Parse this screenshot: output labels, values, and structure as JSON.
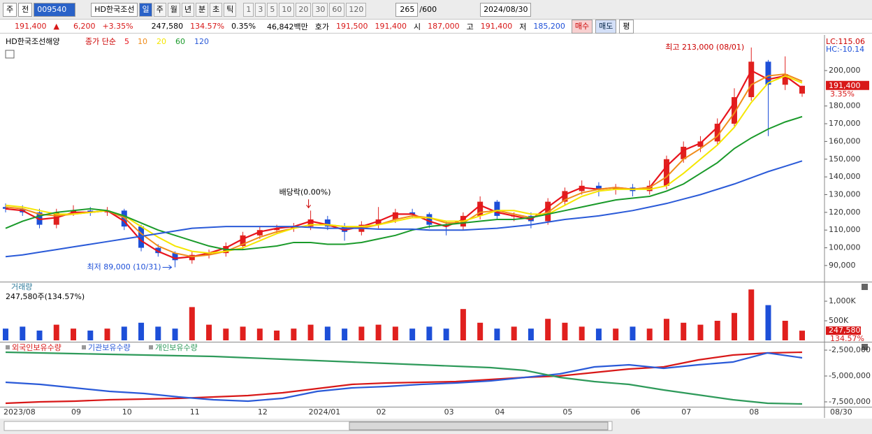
{
  "toolbar": {
    "market": "주",
    "prev": "전",
    "code": "009540",
    "name": "HD한국조선",
    "periods": [
      "일",
      "주",
      "월",
      "년",
      "분",
      "초",
      "틱"
    ],
    "intervals": [
      "1",
      "3",
      "5",
      "10",
      "20",
      "30",
      "60",
      "120"
    ],
    "count": "265",
    "max_count": "/600",
    "date": "2024/08/30"
  },
  "quote": {
    "price": "191,400",
    "arrow": "▲",
    "change": "6,200",
    "change_pct": "+3.35%",
    "volume": "247,580",
    "volume_pct": "134.57%",
    "turnover": "0.35%",
    "amount": "46,842백만",
    "bid_ask_label": "호가",
    "ask": "191,500",
    "bid": "191,400",
    "open_label": "시",
    "open": "187,000",
    "high_label": "고",
    "high": "191,400",
    "low_label": "저",
    "low": "185,200",
    "buy": "매수",
    "sell": "매도",
    "avg": "평"
  },
  "chart_data": [
    {
      "type": "candlestick",
      "title": "HD한국조선해양",
      "subtitle": "종가 단순",
      "lc": "LC:115.06",
      "hc": "HC:-10.14",
      "price_label": "191,400",
      "pct_label": "3.35%",
      "annotations": {
        "max": "최고 213,000 (08/01)",
        "min": "최저 89,000 (10/31)",
        "dividend": "배당락(0.00%)"
      },
      "last_date": "08/30",
      "up_color": "#e0201e",
      "down_color": "#1d4fd8",
      "categories": [
        "2023/08",
        null,
        null,
        null,
        "09",
        null,
        null,
        "10",
        null,
        null,
        null,
        "11",
        null,
        null,
        null,
        "12",
        null,
        null,
        "2024/01",
        null,
        null,
        null,
        "02",
        null,
        null,
        null,
        "03",
        null,
        null,
        "04",
        null,
        null,
        null,
        "05",
        null,
        null,
        null,
        "06",
        null,
        null,
        "07",
        null,
        null,
        null,
        "08",
        null,
        null,
        null
      ],
      "open": [
        123000,
        122000,
        120000,
        113000,
        120000,
        121000,
        120000,
        121000,
        112000,
        100000,
        97000,
        93000,
        96000,
        97000,
        101000,
        107000,
        110000,
        111000,
        112000,
        116000,
        112000,
        109000,
        113000,
        116000,
        120000,
        119000,
        113000,
        112000,
        118000,
        126000,
        118000,
        118000,
        115000,
        126000,
        132000,
        135000,
        133000,
        134000,
        132000,
        135000,
        150000,
        157000,
        160000,
        170000,
        185000,
        205000,
        192000,
        187000
      ],
      "high": [
        125000,
        124000,
        122000,
        122000,
        124000,
        123000,
        123000,
        122000,
        113000,
        102000,
        98000,
        98000,
        99000,
        103000,
        109000,
        112000,
        113000,
        114000,
        121000,
        118000,
        114000,
        115000,
        123000,
        122000,
        122000,
        120000,
        115000,
        120000,
        129000,
        127000,
        120000,
        120000,
        128000,
        134000,
        138000,
        137000,
        136000,
        136000,
        138000,
        152000,
        160000,
        163000,
        173000,
        190000,
        213000,
        206000,
        208000,
        191400
      ],
      "low": [
        120000,
        118000,
        111000,
        111000,
        118000,
        118000,
        118000,
        110000,
        98000,
        95000,
        89000,
        91000,
        94000,
        95000,
        99000,
        105000,
        108000,
        109000,
        110000,
        110000,
        104000,
        107000,
        111000,
        114000,
        117000,
        111000,
        107000,
        110000,
        116000,
        116000,
        115000,
        111000,
        113000,
        124000,
        130000,
        129000,
        130000,
        129000,
        130000,
        133000,
        148000,
        154000,
        158000,
        168000,
        183000,
        163000,
        189000,
        185200
      ],
      "close": [
        122000,
        120000,
        113000,
        120000,
        121000,
        120000,
        121000,
        112000,
        100000,
        97000,
        93000,
        96000,
        97000,
        101000,
        107000,
        110000,
        111000,
        112000,
        116000,
        112000,
        109000,
        113000,
        116000,
        120000,
        119000,
        113000,
        112000,
        118000,
        126000,
        118000,
        118000,
        115000,
        126000,
        132000,
        135000,
        133000,
        134000,
        132000,
        135000,
        150000,
        157000,
        160000,
        170000,
        185000,
        205000,
        192000,
        198000,
        191400
      ],
      "series": [
        {
          "name": "5",
          "color": "#e8141c",
          "values": [
            122000,
            121000,
            116000,
            117000,
            120000,
            120000,
            121000,
            115000,
            104000,
            98000,
            94000,
            95000,
            97000,
            100000,
            105000,
            109000,
            111000,
            112000,
            115000,
            113000,
            110000,
            112000,
            115000,
            119000,
            119000,
            115000,
            112000,
            116000,
            124000,
            120000,
            118000,
            116000,
            123000,
            130000,
            134000,
            133000,
            134000,
            133000,
            134000,
            146000,
            155000,
            159000,
            168000,
            182000,
            200000,
            195000,
            197000,
            190000
          ]
        },
        {
          "name": "10",
          "color": "#f08c1a",
          "values": [
            123000,
            122000,
            119000,
            118000,
            119000,
            120000,
            121000,
            117000,
            108000,
            101000,
            97000,
            95000,
            96000,
            98000,
            102000,
            106000,
            109000,
            111000,
            113000,
            113000,
            112000,
            111000,
            113000,
            116000,
            118000,
            117000,
            114000,
            114000,
            120000,
            121000,
            119000,
            117000,
            120000,
            127000,
            131000,
            133000,
            134000,
            133000,
            134000,
            140000,
            150000,
            156000,
            163000,
            176000,
            192000,
            197000,
            198000,
            194000
          ]
        },
        {
          "name": "20",
          "color": "#f5e600",
          "values": [
            124000,
            123000,
            121000,
            119000,
            119000,
            120000,
            121000,
            118000,
            112000,
            106000,
            101000,
            98000,
            97000,
            98000,
            100000,
            104000,
            108000,
            111000,
            113000,
            113000,
            112000,
            112000,
            113000,
            115000,
            117000,
            117000,
            115000,
            115000,
            118000,
            121000,
            121000,
            119000,
            119000,
            124000,
            129000,
            132000,
            133000,
            133000,
            133000,
            135000,
            142000,
            150000,
            158000,
            168000,
            182000,
            193000,
            197000,
            193000
          ]
        },
        {
          "name": "60",
          "color": "#1a9a2a",
          "values": [
            111000,
            115000,
            118000,
            120000,
            121000,
            122000,
            121000,
            118000,
            114000,
            110000,
            107000,
            104000,
            101000,
            99000,
            99000,
            100000,
            101000,
            103000,
            103000,
            102000,
            102000,
            103000,
            105000,
            107000,
            110000,
            112000,
            113000,
            114000,
            115000,
            116000,
            116000,
            117000,
            119000,
            121000,
            123000,
            125000,
            127000,
            128000,
            129000,
            132000,
            136000,
            142000,
            148000,
            156000,
            162000,
            167000,
            171000,
            174000
          ]
        },
        {
          "name": "120",
          "color": "#2a5ad8",
          "values": [
            95000,
            96000,
            97500,
            99000,
            100500,
            102000,
            103500,
            105000,
            106500,
            108000,
            109500,
            111000,
            111500,
            112000,
            112000,
            112000,
            112000,
            112000,
            111500,
            111000,
            111000,
            111000,
            110500,
            110500,
            110500,
            110000,
            110000,
            110000,
            110500,
            111000,
            112000,
            113000,
            114500,
            116000,
            117000,
            118000,
            119500,
            121000,
            123000,
            125000,
            127500,
            130000,
            133000,
            136000,
            139500,
            143000,
            146000,
            149000
          ]
        }
      ],
      "ylim": [
        80900,
        219300
      ],
      "yticks": [
        {
          "value": 90000,
          "label": "90,000"
        },
        {
          "value": 100000,
          "label": "100,000"
        },
        {
          "value": 110000,
          "label": "110,000"
        },
        {
          "value": 120000,
          "label": "120,000"
        },
        {
          "value": 130000,
          "label": "130,000"
        },
        {
          "value": 140000,
          "label": "140,000"
        },
        {
          "value": 150000,
          "label": "150,000"
        },
        {
          "value": 160000,
          "label": "160,000"
        },
        {
          "value": 170000,
          "label": "170,000"
        },
        {
          "value": 180000,
          "label": "180,000"
        },
        {
          "value": 200000,
          "label": "200,000"
        }
      ]
    },
    {
      "type": "bar",
      "title": "거래량",
      "subtitle": "247,580주(134.57%)",
      "last_label": "247,580",
      "last_pct": "134.57%",
      "values": [
        300000,
        350000,
        250000,
        400000,
        300000,
        250000,
        300000,
        350000,
        450000,
        350000,
        300000,
        850000,
        400000,
        300000,
        350000,
        300000,
        250000,
        300000,
        400000,
        350000,
        300000,
        350000,
        400000,
        350000,
        300000,
        350000,
        300000,
        800000,
        450000,
        300000,
        350000,
        300000,
        550000,
        450000,
        350000,
        300000,
        300000,
        350000,
        300000,
        550000,
        450000,
        400000,
        500000,
        700000,
        1300000,
        900000,
        500000,
        247580
      ],
      "ylim": [
        0,
        1464000
      ],
      "yticks": [
        {
          "value": 500000,
          "label": "500K"
        },
        {
          "value": 1000000,
          "label": "1,000K"
        }
      ]
    },
    {
      "type": "line",
      "series": [
        {
          "name": "외국인보유수량",
          "color": "#d81818",
          "values": [
            -7635000,
            -7500000,
            -7432000,
            -7297000,
            -7230000,
            -7162000,
            -7027000,
            -6892000,
            -6622000,
            -6216000,
            -5811000,
            -5676000,
            -5608000,
            -5541000,
            -5338000,
            -5135000,
            -5000000,
            -4662000,
            -4324000,
            -4122000,
            -3446000,
            -2973000,
            -2770000,
            -2703000
          ]
        },
        {
          "name": "기관보유수량",
          "color": "#2a5ad8",
          "values": [
            -5608000,
            -5811000,
            -6149000,
            -6486000,
            -6689000,
            -7027000,
            -7297000,
            -7432000,
            -7162000,
            -6486000,
            -6149000,
            -6014000,
            -5811000,
            -5676000,
            -5473000,
            -5135000,
            -4797000,
            -4122000,
            -3919000,
            -4257000,
            -3919000,
            -3649000,
            -2770000,
            -3243000
          ]
        },
        {
          "name": "개인보유수량",
          "color": "#2e9a5a",
          "values": [
            -2703000,
            -2770000,
            -2838000,
            -2905000,
            -2973000,
            -3041000,
            -3108000,
            -3243000,
            -3378000,
            -3514000,
            -3649000,
            -3784000,
            -3919000,
            -4054000,
            -4189000,
            -4459000,
            -5135000,
            -5541000,
            -5811000,
            -6351000,
            -6824000,
            -7297000,
            -7635000,
            -7703000
          ]
        }
      ],
      "ylim": [
        -7973000,
        -1892000
      ],
      "yticks": [
        {
          "value": -2500000,
          "label": "-2,500,000"
        },
        {
          "value": -5000000,
          "label": "-5,000,000"
        },
        {
          "value": -7500000,
          "label": "-7,500,000"
        }
      ]
    }
  ]
}
